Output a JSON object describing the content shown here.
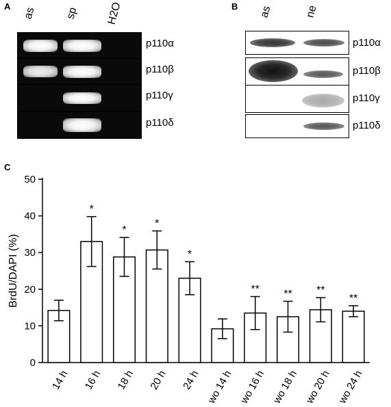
{
  "panel_a": {
    "letter": "A",
    "lanes": [
      "as",
      "sp",
      "H2O"
    ],
    "rows": [
      {
        "label": "p110α",
        "bands": [
          1,
          1,
          0
        ]
      },
      {
        "label": "p110β",
        "bands": [
          0.9,
          1,
          0
        ]
      },
      {
        "label": "p110γ",
        "bands": [
          0,
          1,
          0
        ]
      },
      {
        "label": "p110δ",
        "bands": [
          0,
          1,
          0
        ]
      }
    ]
  },
  "panel_b": {
    "letter": "B",
    "lanes": [
      "as",
      "ne"
    ],
    "rows": [
      {
        "label": "p110α",
        "bands": [
          0.8,
          0.7
        ]
      },
      {
        "label": "p110β",
        "bands": [
          1,
          0.6
        ]
      },
      {
        "label": "p110γ",
        "bands": [
          0,
          0.5
        ]
      },
      {
        "label": "p110δ",
        "bands": [
          0,
          0.7
        ]
      }
    ]
  },
  "panel_c": {
    "letter": "C",
    "chart_data": {
      "type": "bar",
      "title": "",
      "xlabel": "",
      "ylabel": "BrdU/DAPI (%)",
      "ylim": [
        0,
        50
      ],
      "yticks": [
        0,
        10,
        20,
        30,
        40,
        50
      ],
      "categories": [
        "14 h",
        "16 h",
        "18 h",
        "20 h",
        "24 h",
        "wo 14 h",
        "wo 16 h",
        "wo 18 h",
        "wo 20 h",
        "wo 24 h"
      ],
      "values": [
        14.2,
        33.0,
        28.8,
        30.7,
        23.0,
        9.2,
        13.5,
        12.5,
        14.4,
        14.0
      ],
      "errors": [
        2.8,
        6.8,
        5.3,
        5.2,
        4.5,
        2.7,
        4.5,
        4.2,
        3.3,
        1.5
      ],
      "annotations": [
        "",
        "*",
        "*",
        "*",
        "*",
        "",
        "**",
        "**",
        "**",
        "**"
      ],
      "grid": false,
      "bar_color": "#ffffff"
    }
  }
}
